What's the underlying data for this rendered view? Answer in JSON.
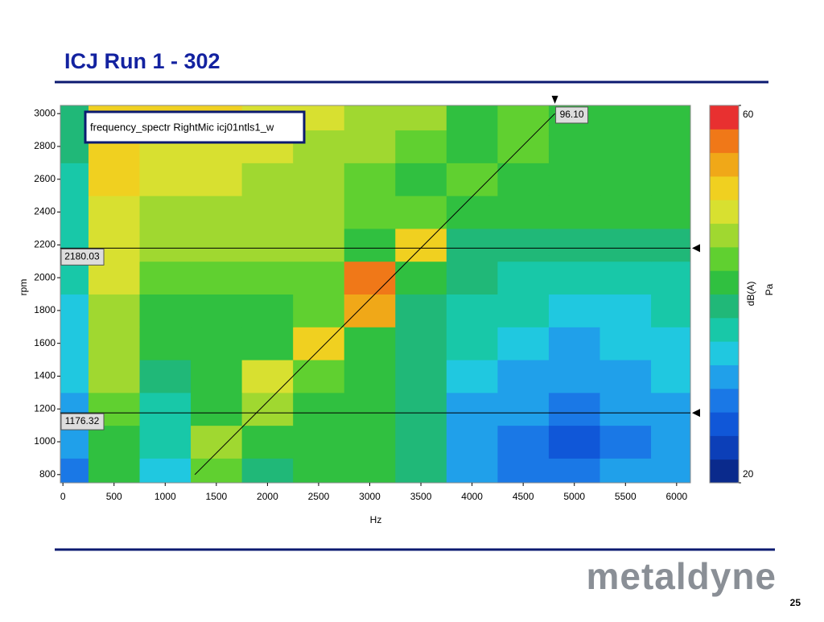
{
  "slide": {
    "title": "ICJ Run 1 - 302",
    "logo": "metaldyne",
    "page": "25"
  },
  "chart_data": {
    "type": "heatmap",
    "legend_label": "frequency_spectr RightMic  icj01ntls1_w",
    "xlabel": "Hz",
    "ylabel": "rpm",
    "colorbar_label": "dB(A)",
    "colorbar_unit": "Pa",
    "x_bins": [
      -25,
      250,
      750,
      1250,
      1750,
      2250,
      2750,
      3250,
      3750,
      4250,
      4750,
      5250,
      5750,
      6135
    ],
    "y_bins": [
      750,
      900,
      1100,
      1300,
      1500,
      1700,
      1900,
      2100,
      2300,
      2500,
      2700,
      2900,
      3050
    ],
    "z": [
      [
        28,
        40,
        33,
        44,
        38,
        40,
        40,
        38,
        30,
        28,
        28,
        30,
        30
      ],
      [
        30,
        42,
        35,
        46,
        40,
        40,
        40,
        38,
        30,
        28,
        27,
        29,
        30
      ],
      [
        32,
        44,
        37,
        40,
        47,
        41,
        40,
        38,
        32,
        30,
        29,
        30,
        30
      ],
      [
        33,
        45,
        38,
        40,
        48,
        43,
        40,
        38,
        34,
        32,
        31,
        32,
        33
      ],
      [
        34,
        46,
        40,
        41,
        42,
        50,
        40,
        38,
        35,
        33,
        32,
        33,
        34
      ],
      [
        34,
        47,
        42,
        42,
        42,
        44,
        54,
        39,
        37,
        35,
        33,
        34,
        35
      ],
      [
        35,
        48,
        44,
        43,
        43,
        44,
        55,
        40,
        38,
        36,
        35,
        36,
        36
      ],
      [
        36,
        48,
        45,
        45,
        45,
        45,
        42,
        50,
        39,
        38,
        38,
        38,
        39
      ],
      [
        36,
        49,
        47,
        47,
        46,
        45,
        43,
        44,
        42,
        40,
        40,
        40,
        40
      ],
      [
        37,
        52,
        48,
        48,
        47,
        46,
        44,
        42,
        44,
        41,
        41,
        41,
        41
      ],
      [
        38,
        52,
        49,
        49,
        48,
        47,
        46,
        43,
        42,
        44,
        42,
        42,
        42
      ],
      [
        38,
        52,
        50,
        50,
        49,
        48,
        47,
        45,
        42,
        44,
        42,
        42,
        42
      ]
    ],
    "xlim": [
      -25,
      6135
    ],
    "ylim": [
      750,
      3050
    ],
    "xticks": [
      0,
      500,
      1000,
      1500,
      2000,
      2500,
      3000,
      3500,
      4000,
      4500,
      5000,
      5500,
      6000
    ],
    "yticks": [
      800,
      1000,
      1200,
      1400,
      1600,
      1800,
      2000,
      2200,
      2400,
      2600,
      2800,
      3000
    ],
    "clim": [
      20,
      60
    ],
    "cticks": [
      20,
      60
    ],
    "colormap": [
      "#0a2a8c",
      "#0c3fb8",
      "#1057d8",
      "#1a78e6",
      "#20a0ea",
      "#20c8e0",
      "#18c8a8",
      "#20b878",
      "#30c040",
      "#60d030",
      "#a0d830",
      "#d8e030",
      "#f0d020",
      "#f0a818",
      "#f07818",
      "#e83030"
    ],
    "cursors": [
      2180.03,
      1176.32
    ],
    "order_line": {
      "x": [
        1290,
        4810
      ],
      "y": [
        800,
        3000
      ],
      "label": "96.10"
    }
  }
}
